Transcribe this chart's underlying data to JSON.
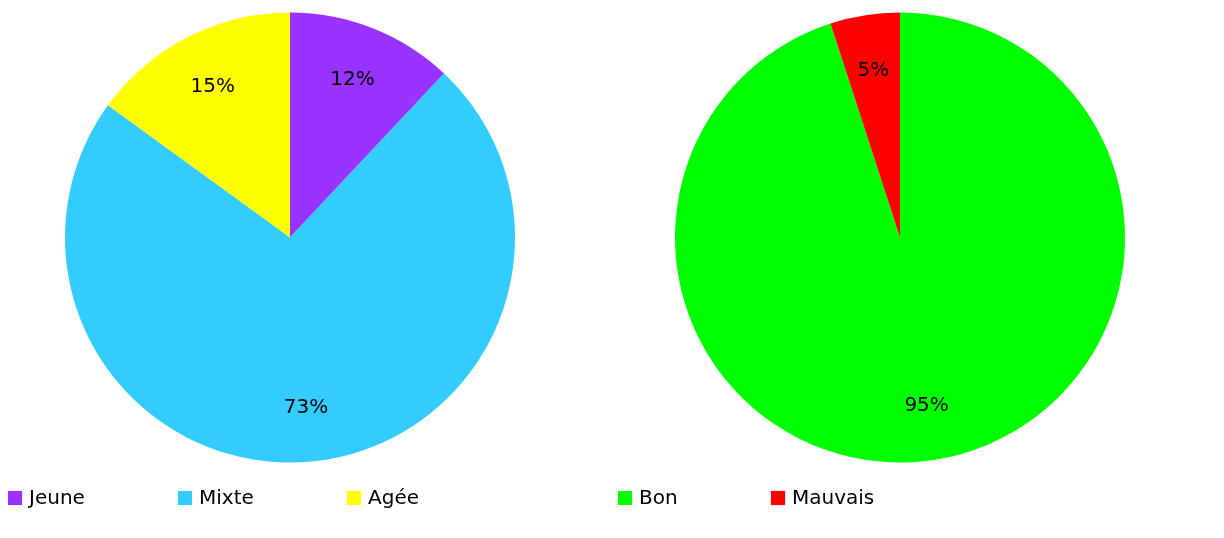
{
  "chart_data": [
    {
      "type": "pie",
      "categories": [
        "Jeune",
        "Mixte",
        "Agée"
      ],
      "values": [
        12,
        73,
        15
      ],
      "colors": [
        "#9933ff",
        "#33ccff",
        "#ffff00"
      ],
      "value_labels": [
        "12%",
        "73%",
        "15%"
      ],
      "legend": "bottom"
    },
    {
      "type": "pie",
      "categories": [
        "Bon",
        "Mauvais"
      ],
      "values": [
        95,
        5
      ],
      "colors": [
        "#00ff00",
        "#ff0000"
      ],
      "value_labels": [
        "95%",
        "5%"
      ],
      "legend": "bottom"
    }
  ]
}
